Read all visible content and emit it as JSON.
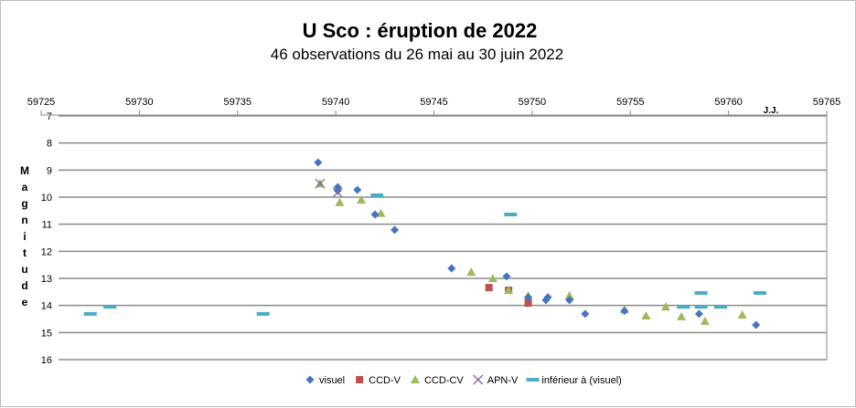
{
  "chart_data": {
    "type": "scatter",
    "title": "U Sco : éruption de 2022",
    "subtitle": "46 observations du 26 mai au 30 juin 2022",
    "xlabel": "J.J.",
    "ylabel": "Magnitude",
    "xlim": [
      59725,
      59765
    ],
    "ylim": [
      7,
      16
    ],
    "y_inverted": true,
    "x_axis_position": "top",
    "xticks": [
      59725,
      59730,
      59735,
      59740,
      59745,
      59750,
      59755,
      59760,
      59765
    ],
    "yticks": [
      7,
      8,
      9,
      10,
      11,
      12,
      13,
      14,
      15,
      16
    ],
    "grid": "horizontal",
    "legend_position": "bottom",
    "series": [
      {
        "name": "visuel",
        "marker": "diamond",
        "color": "#4472c4",
        "points": [
          [
            59739.1,
            8.72
          ],
          [
            59740.1,
            9.63
          ],
          [
            59740.1,
            9.76
          ],
          [
            59741.1,
            9.73
          ],
          [
            59742.0,
            10.64
          ],
          [
            59743.0,
            11.21
          ],
          [
            59745.9,
            12.63
          ],
          [
            59748.7,
            12.93
          ],
          [
            59749.8,
            13.7
          ],
          [
            59750.7,
            13.8
          ],
          [
            59750.8,
            13.7
          ],
          [
            59751.9,
            13.8
          ],
          [
            59752.7,
            14.31
          ],
          [
            59754.7,
            14.2
          ],
          [
            59758.5,
            14.31
          ],
          [
            59761.4,
            14.72
          ]
        ]
      },
      {
        "name": "CCD-V",
        "marker": "square",
        "color": "#c0504d",
        "points": [
          [
            59747.8,
            13.34
          ],
          [
            59748.8,
            13.44
          ],
          [
            59749.8,
            13.91
          ]
        ]
      },
      {
        "name": "CCD-CV",
        "marker": "triangle",
        "color": "#9bbb59",
        "points": [
          [
            59739.2,
            9.5
          ],
          [
            59740.2,
            10.2
          ],
          [
            59741.3,
            10.1
          ],
          [
            59742.3,
            10.6
          ],
          [
            59746.9,
            12.77
          ],
          [
            59748.0,
            13.0
          ],
          [
            59748.8,
            13.44
          ],
          [
            59749.8,
            13.64
          ],
          [
            59751.9,
            13.64
          ],
          [
            59754.7,
            14.15
          ],
          [
            59755.8,
            14.38
          ],
          [
            59756.8,
            14.05
          ],
          [
            59757.6,
            14.41
          ],
          [
            59758.8,
            14.58
          ],
          [
            59760.7,
            14.35
          ]
        ]
      },
      {
        "name": "APN-V",
        "marker": "x",
        "color": "#8064a2",
        "points": [
          [
            59739.2,
            9.5
          ],
          [
            59740.1,
            9.83
          ]
        ]
      },
      {
        "name": "inférieur à (visuel)",
        "marker": "dash",
        "color": "#4bacc6",
        "points": [
          [
            59727.5,
            14.31
          ],
          [
            59728.5,
            14.05
          ],
          [
            59736.3,
            14.31
          ],
          [
            59742.1,
            9.93
          ],
          [
            59748.9,
            10.64
          ],
          [
            59757.7,
            14.05
          ],
          [
            59758.6,
            13.54
          ],
          [
            59758.6,
            14.05
          ],
          [
            59759.6,
            14.05
          ],
          [
            59761.6,
            13.54
          ]
        ]
      }
    ]
  }
}
